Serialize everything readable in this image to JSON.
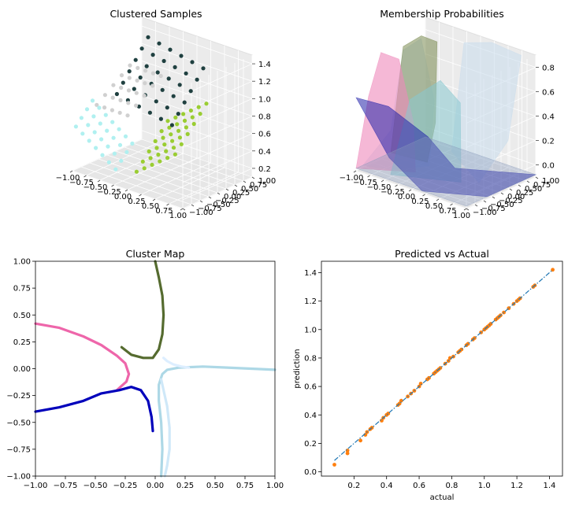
{
  "chart_data": [
    {
      "type": "scatter",
      "subtype": "3d-scatter",
      "title": "Clustered Samples",
      "x_ticks": [
        "−1.00",
        "−0.75",
        "−0.50",
        "−0.25",
        "0.00",
        "0.25",
        "0.50",
        "0.75",
        "1.00"
      ],
      "y_ticks": [
        "−1.00",
        "−0.75",
        "−0.50",
        "−0.25",
        "0.00",
        "0.25",
        "0.50",
        "0.75",
        "1.00"
      ],
      "z_ticks": [
        "0.2",
        "0.4",
        "0.6",
        "0.8",
        "1.0",
        "1.2",
        "1.4"
      ],
      "xlim": [
        -1,
        1
      ],
      "ylim": [
        -1,
        1
      ],
      "zlim": [
        0.05,
        1.45
      ],
      "grid": true,
      "colors": [
        "#b0f0f0",
        "#d0d0d0",
        "#1f4040",
        "#9acd32"
      ]
    },
    {
      "type": "area",
      "subtype": "3d-surface",
      "title": "Membership Probabilities",
      "x_ticks": [
        "−1.00",
        "−0.75",
        "−0.50",
        "−0.25",
        "0.00",
        "0.25",
        "0.50",
        "0.75",
        "1.00"
      ],
      "y_ticks": [
        "−1.00",
        "−0.75",
        "−0.50",
        "−0.25",
        "0.00",
        "0.25",
        "0.50",
        "0.75",
        "1.00"
      ],
      "z_ticks": [
        "0.0",
        "0.2",
        "0.4",
        "0.6",
        "0.8"
      ],
      "xlim": [
        -1,
        1
      ],
      "ylim": [
        -1,
        1
      ],
      "zlim": [
        0,
        1
      ],
      "grid": true,
      "colors": [
        "#ee88bb",
        "#7a8a50",
        "#2222aa",
        "#88c8d0",
        "#c8dcec"
      ]
    },
    {
      "type": "line",
      "subtype": "contour",
      "title": "Cluster Map",
      "xlim": [
        -1,
        1
      ],
      "ylim": [
        -1,
        1
      ],
      "x_ticks": [
        "−1.00",
        "−0.75",
        "−0.50",
        "−0.25",
        "0.00",
        "0.25",
        "0.50",
        "0.75",
        "1.00"
      ],
      "y_ticks": [
        "1.00",
        "0.75",
        "0.50",
        "0.25",
        "0.00",
        "−0.25",
        "−0.50",
        "−0.75",
        "−1.00"
      ],
      "series": [
        {
          "color": "#556b2f",
          "x": [
            0.0,
            0.03,
            0.06,
            0.07,
            0.06,
            0.03,
            -0.02,
            -0.1,
            -0.2,
            -0.28
          ],
          "y": [
            1.0,
            0.85,
            0.68,
            0.5,
            0.32,
            0.18,
            0.1,
            0.1,
            0.13,
            0.2
          ]
        },
        {
          "color": "#ee66aa",
          "x": [
            -1.0,
            -0.8,
            -0.6,
            -0.45,
            -0.32,
            -0.25,
            -0.22,
            -0.24,
            -0.28,
            -0.32
          ],
          "y": [
            0.42,
            0.38,
            0.3,
            0.22,
            0.12,
            0.05,
            -0.05,
            -0.12,
            -0.16,
            -0.2
          ]
        },
        {
          "color": "#0000bb",
          "x": [
            -1.0,
            -0.8,
            -0.6,
            -0.45,
            -0.3,
            -0.2,
            -0.12,
            -0.06,
            -0.03,
            -0.02
          ],
          "y": [
            -0.4,
            -0.36,
            -0.3,
            -0.23,
            -0.2,
            -0.17,
            -0.2,
            -0.3,
            -0.45,
            -0.58
          ]
        },
        {
          "color": "#add8e6",
          "x": [
            1.0,
            0.8,
            0.6,
            0.4,
            0.2,
            0.1,
            0.06,
            0.03,
            0.03,
            0.05,
            0.06,
            0.05
          ],
          "y": [
            -0.01,
            0.0,
            0.01,
            0.02,
            0.01,
            -0.01,
            -0.05,
            -0.15,
            -0.3,
            -0.5,
            -0.75,
            -1.0
          ]
        },
        {
          "color": "#ddeeff",
          "x": [
            0.07,
            0.1,
            0.15,
            0.22,
            0.28
          ],
          "y": [
            0.1,
            0.07,
            0.04,
            0.02,
            0.01
          ]
        },
        {
          "color": "#cfe8f8",
          "x": [
            0.05,
            0.07,
            0.1,
            0.12,
            0.12,
            0.1,
            0.08
          ],
          "y": [
            -0.1,
            -0.2,
            -0.35,
            -0.55,
            -0.75,
            -0.9,
            -1.0
          ]
        }
      ]
    },
    {
      "type": "scatter",
      "title": "Predicted vs Actual",
      "xlabel": "actual",
      "ylabel": "prediction",
      "xlim": [
        0.0,
        1.48
      ],
      "ylim": [
        -0.03,
        1.48
      ],
      "x_ticks": [
        "0.2",
        "0.4",
        "0.6",
        "0.8",
        "1.0",
        "1.2",
        "1.4"
      ],
      "y_ticks": [
        "0.0",
        "0.2",
        "0.4",
        "0.6",
        "0.8",
        "1.0",
        "1.2",
        "1.4"
      ],
      "series": [
        {
          "name": "",
          "color": "#ff7f0e",
          "x": [
            0.08,
            0.16,
            0.16,
            0.24,
            0.27,
            0.28,
            0.3,
            0.31,
            0.37,
            0.38,
            0.4,
            0.41,
            0.47,
            0.48,
            0.49,
            0.53,
            0.55,
            0.57,
            0.6,
            0.61,
            0.65,
            0.66,
            0.69,
            0.7,
            0.71,
            0.72,
            0.73,
            0.76,
            0.78,
            0.79,
            0.81,
            0.84,
            0.85,
            0.86,
            0.89,
            0.9,
            0.93,
            0.94,
            0.98,
            1.0,
            1.01,
            1.02,
            1.03,
            1.04,
            1.07,
            1.08,
            1.09,
            1.1,
            1.12,
            1.15,
            1.18,
            1.2,
            1.21,
            1.22,
            1.3,
            1.31,
            1.42
          ],
          "y": [
            0.05,
            0.13,
            0.15,
            0.22,
            0.26,
            0.28,
            0.3,
            0.31,
            0.36,
            0.38,
            0.4,
            0.41,
            0.47,
            0.48,
            0.5,
            0.53,
            0.55,
            0.57,
            0.6,
            0.62,
            0.65,
            0.66,
            0.69,
            0.7,
            0.71,
            0.72,
            0.73,
            0.76,
            0.78,
            0.8,
            0.81,
            0.84,
            0.85,
            0.86,
            0.89,
            0.9,
            0.93,
            0.94,
            0.98,
            1.0,
            1.01,
            1.02,
            1.03,
            1.04,
            1.07,
            1.08,
            1.09,
            1.1,
            1.12,
            1.15,
            1.18,
            1.2,
            1.21,
            1.22,
            1.3,
            1.31,
            1.42
          ]
        },
        {
          "name": "",
          "color": "#1f77b4",
          "style": "dashdot",
          "x": [
            0.08,
            1.42
          ],
          "y": [
            0.08,
            1.42
          ]
        }
      ]
    }
  ]
}
